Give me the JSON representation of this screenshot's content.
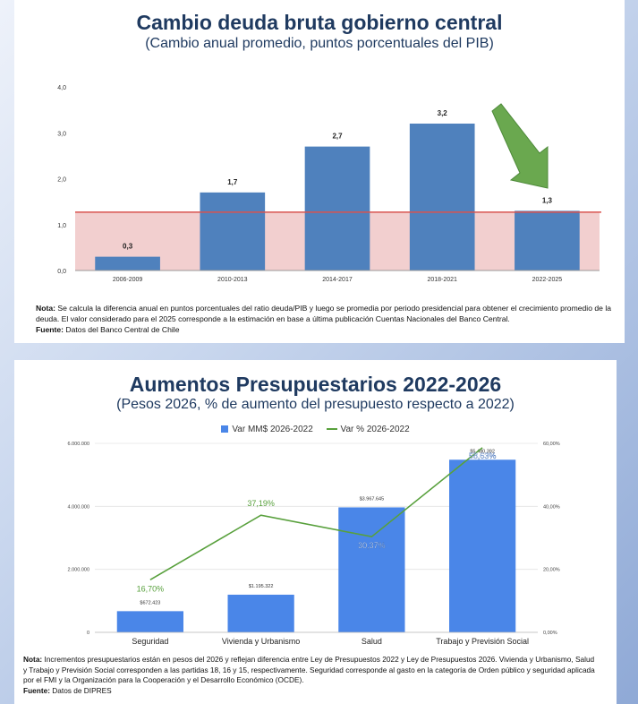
{
  "chart_data": [
    {
      "type": "bar",
      "title": "Cambio deuda bruta gobierno central",
      "subtitle": "(Cambio anual promedio, puntos porcentuales del PIB)",
      "categories": [
        "2006-2009",
        "2010-2013",
        "2014-2017",
        "2018-2021",
        "2022-2025"
      ],
      "values": [
        0.3,
        1.7,
        2.7,
        3.2,
        1.3
      ],
      "value_labels": [
        "0,3",
        "1,7",
        "2,7",
        "3,2",
        "1,3"
      ],
      "ylim": [
        0,
        4
      ],
      "yticks": [
        "0,0",
        "1,0",
        "2,0",
        "3,0",
        "4,0"
      ],
      "reference_line": 1.27,
      "bar_color": "#4f81bd",
      "ref_color": "#d9534f",
      "shade_color": "#f2cfcf",
      "arrow_color": "#6aa84f",
      "note_label": "Nota:",
      "note_text": "Se calcula la diferencia anual en puntos porcentuales del ratio deuda/PIB y luego se promedia por periodo presidencial para obtener el crecimiento promedio de la deuda. El valor considerado para el 2025 corresponde a la estimación en base a última publicación Cuentas Nacionales del Banco Central.",
      "source_label": "Fuente:",
      "source_text": "Datos del Banco Central de Chile"
    },
    {
      "type": "bar",
      "title": "Aumentos Presupuestarios 2022-2026",
      "subtitle": "(Pesos 2026, % de aumento del presupuesto respecto a 2022)",
      "categories": [
        "Seguridad",
        "Vivienda y Urbanismo",
        "Salud",
        "Trabajo y Previsión Social"
      ],
      "series": [
        {
          "name": "Var MM$ 2026-2022",
          "values": [
            672423,
            1195322,
            3967645,
            5480392
          ],
          "labels": [
            "$672.423",
            "$1.195.322",
            "$3.967.645",
            "$5.480.392"
          ]
        },
        {
          "name": "Var % 2026-2022",
          "values": [
            16.7,
            37.19,
            30.37,
            58.63
          ],
          "labels": [
            "16,70%",
            "37,19%",
            "30,37%",
            "58,63%"
          ]
        }
      ],
      "ylim": [
        0,
        6000000
      ],
      "yticks": [
        "0",
        "2.000.000",
        "4.000.000",
        "6.000.000"
      ],
      "y2lim": [
        0,
        60
      ],
      "y2ticks": [
        "0,00%",
        "20,00%",
        "40,00%",
        "60,00%"
      ],
      "bar_color": "#4a86e8",
      "line_color": "#58a03c",
      "note_label": "Nota:",
      "note_text": "Incrementos presupuestarios están en pesos del 2026 y reflejan diferencia entre Ley de Presupuestos 2022 y Ley de Presupuestos 2026. Vivienda y Urbanismo, Salud y Trabajo y Previsión Social corresponden a las partidas 18, 16 y 15, respectivamente. Seguridad corresponde al gasto en la categoría de Orden público y seguridad aplicada por el FMI y la Organización para la Cooperación y el Desarrollo Económico (OCDE).",
      "source_label": "Fuente:",
      "source_text": "Datos de DIPRES"
    }
  ]
}
